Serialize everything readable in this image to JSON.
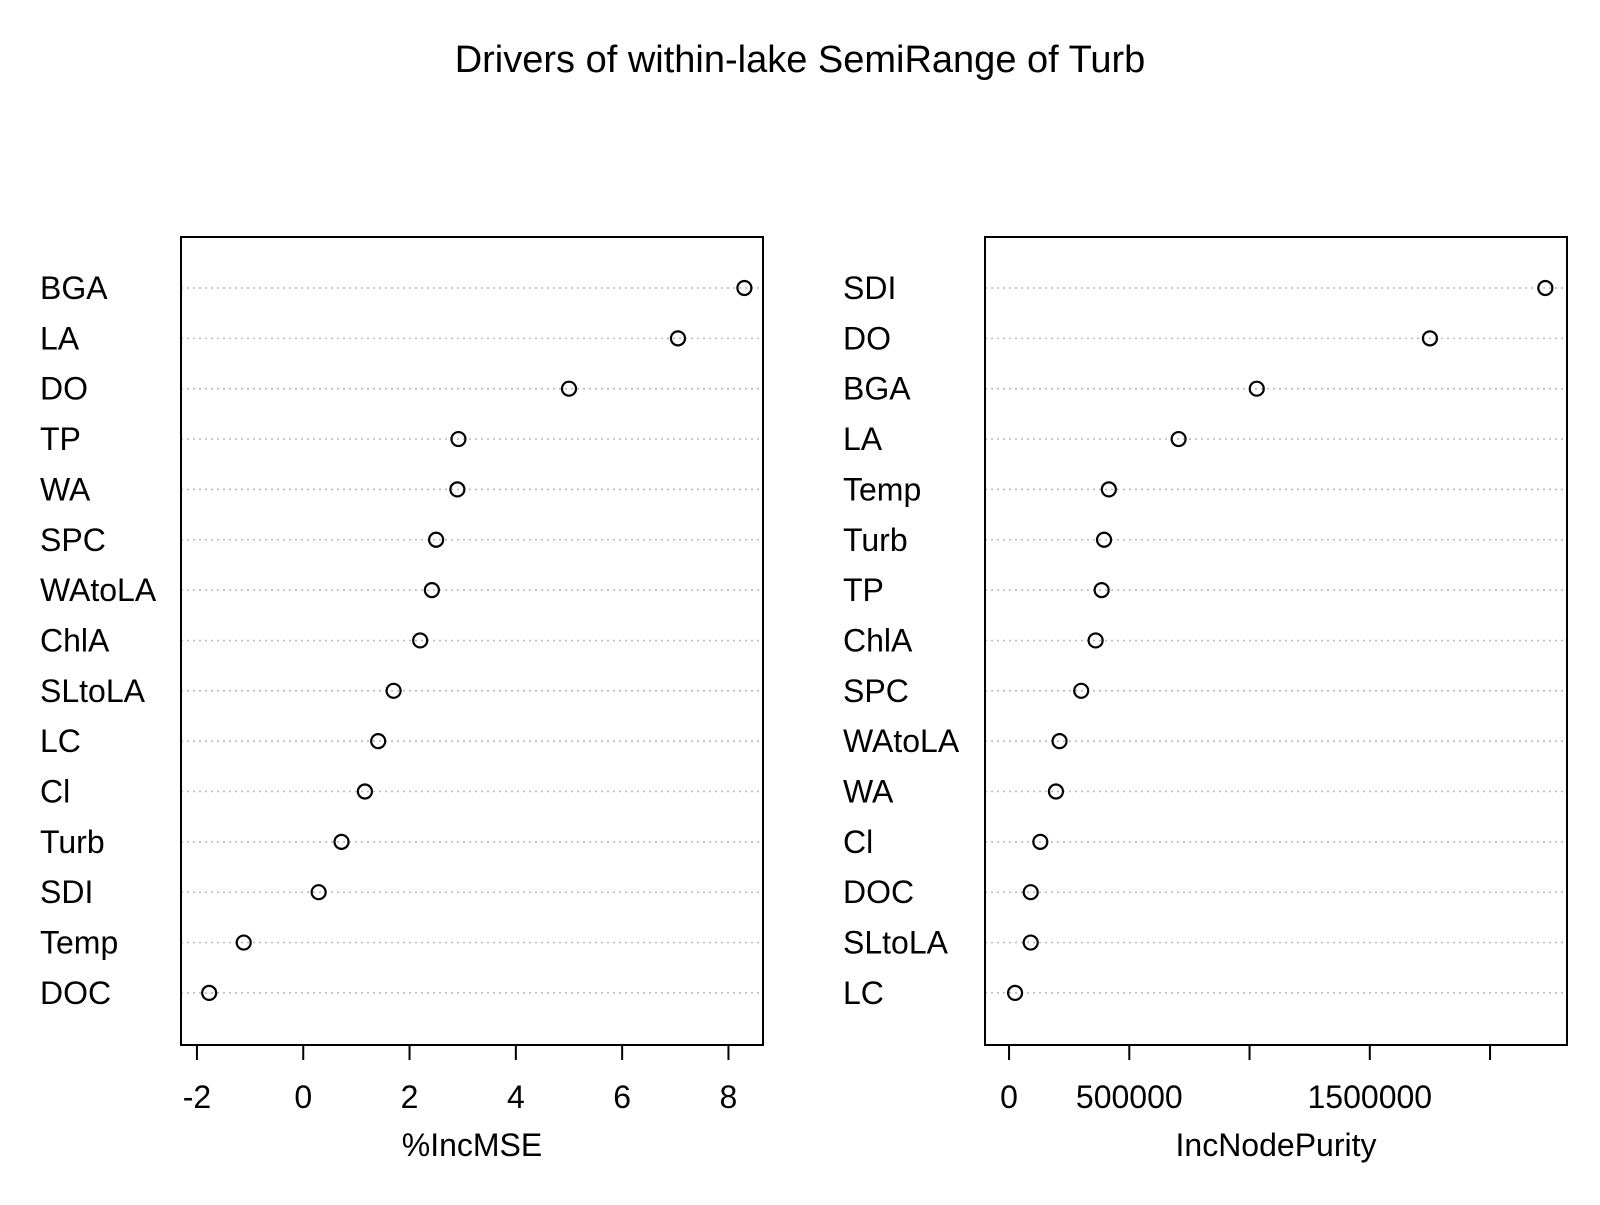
{
  "title": "Drivers of within-lake SemiRange of Turb",
  "chart_data": [
    {
      "type": "scatter",
      "title": "",
      "xlabel": "%IncMSE",
      "ylabel": "",
      "xlim": [
        -2.3,
        8.65
      ],
      "xticks": [
        -2,
        0,
        2,
        4,
        6,
        8
      ],
      "xtick_labels": [
        "-2",
        "0",
        "2",
        "4",
        "6",
        "8"
      ],
      "grid": "dotted-horizontal",
      "categories": [
        "BGA",
        "LA",
        "DO",
        "TP",
        "WA",
        "SPC",
        "WAtoLA",
        "ChlA",
        "SLtoLA",
        "LC",
        "Cl",
        "Turb",
        "SDI",
        "Temp",
        "DOC"
      ],
      "values": [
        8.3,
        7.05,
        5.0,
        2.92,
        2.9,
        2.5,
        2.42,
        2.2,
        1.7,
        1.41,
        1.16,
        0.72,
        0.29,
        -1.12,
        -1.77
      ]
    },
    {
      "type": "scatter",
      "title": "",
      "xlabel": "IncNodePurity",
      "ylabel": "",
      "xlim": [
        -100000,
        2320000
      ],
      "xticks": [
        0,
        500000,
        1000000,
        1500000,
        2000000
      ],
      "xtick_labels": [
        "0",
        "500000",
        "",
        "1500000",
        ""
      ],
      "grid": "dotted-horizontal",
      "categories": [
        "SDI",
        "DO",
        "BGA",
        "LA",
        "Temp",
        "Turb",
        "TP",
        "ChlA",
        "SPC",
        "WAtoLA",
        "WA",
        "Cl",
        "DOC",
        "SLtoLA",
        "LC"
      ],
      "values": [
        2230000,
        1750000,
        1030000,
        705000,
        415000,
        395000,
        385000,
        360000,
        300000,
        210000,
        195000,
        130000,
        90000,
        90000,
        25000
      ]
    }
  ]
}
